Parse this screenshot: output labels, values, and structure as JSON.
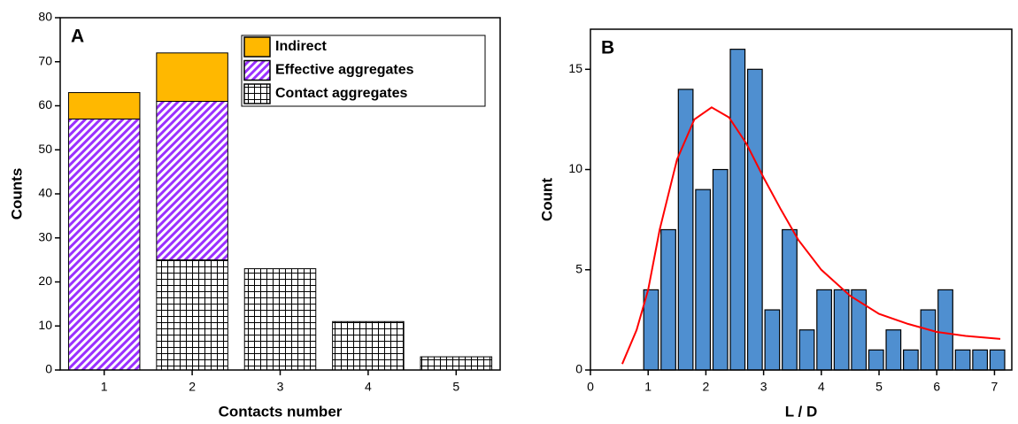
{
  "chart_data": [
    {
      "type": "bar",
      "stacked": true,
      "panel_label": "A",
      "xlabel": "Contacts number",
      "ylabel": "Counts",
      "categories": [
        "1",
        "2",
        "3",
        "4",
        "5"
      ],
      "series": [
        {
          "name": "Contact aggregates",
          "color": "#000000",
          "pattern": "grid",
          "values": [
            0,
            25,
            23,
            11,
            3
          ]
        },
        {
          "name": "Effective aggregates",
          "color": "#9b30ff",
          "pattern": "hatch",
          "values": [
            57,
            36,
            0,
            0,
            0
          ]
        },
        {
          "name": "Indirect",
          "color": "#ffb800",
          "pattern": "solid",
          "values": [
            6,
            11,
            0,
            0,
            0
          ]
        }
      ],
      "ylim": [
        0,
        80
      ],
      "yticks": [
        0,
        10,
        20,
        30,
        40,
        50,
        60,
        70,
        80
      ],
      "legend": "upper right"
    },
    {
      "type": "histogram",
      "panel_label": "B",
      "xlabel": "L / D",
      "ylabel": "Count",
      "bins": [
        0.9,
        1.2,
        1.5,
        1.8,
        2.1,
        2.4,
        2.7,
        3.0,
        3.3,
        3.6,
        3.9,
        4.2,
        4.5,
        4.8,
        5.1,
        5.4,
        5.7,
        6.0,
        6.3,
        6.6,
        6.9,
        7.2
      ],
      "values": [
        4,
        7,
        14,
        9,
        10,
        16,
        15,
        3,
        7,
        2,
        4,
        4,
        4,
        1,
        2,
        1,
        3,
        4,
        1,
        1,
        1
      ],
      "color": "#4f8fd0",
      "fit": {
        "color": "#ff0000",
        "x": [
          0.55,
          0.8,
          1.0,
          1.2,
          1.5,
          1.8,
          2.1,
          2.4,
          2.7,
          3.0,
          3.3,
          3.6,
          4.0,
          4.5,
          5.0,
          5.5,
          6.0,
          6.5,
          7.1
        ],
        "y": [
          0.3,
          2,
          4,
          7,
          10.5,
          12.5,
          13.1,
          12.6,
          11.3,
          9.6,
          8,
          6.5,
          5,
          3.7,
          2.8,
          2.3,
          1.9,
          1.7,
          1.55
        ]
      },
      "xlim": [
        0,
        7.3
      ],
      "xticks": [
        0,
        1,
        2,
        3,
        4,
        5,
        6,
        7
      ],
      "ylim": [
        0,
        17
      ],
      "yticks": [
        0,
        5,
        10,
        15
      ]
    }
  ]
}
